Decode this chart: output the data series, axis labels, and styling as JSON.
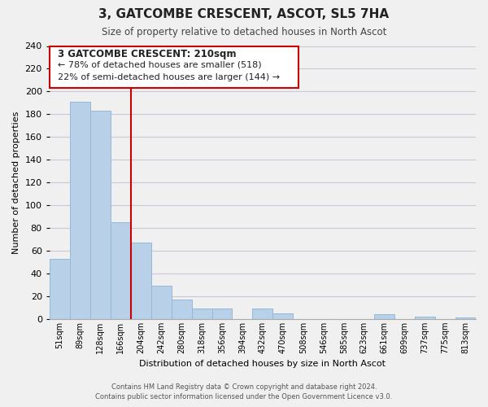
{
  "title": "3, GATCOMBE CRESCENT, ASCOT, SL5 7HA",
  "subtitle": "Size of property relative to detached houses in North Ascot",
  "xlabel": "Distribution of detached houses by size in North Ascot",
  "ylabel": "Number of detached properties",
  "categories": [
    "51sqm",
    "89sqm",
    "128sqm",
    "166sqm",
    "204sqm",
    "242sqm",
    "280sqm",
    "318sqm",
    "356sqm",
    "394sqm",
    "432sqm",
    "470sqm",
    "508sqm",
    "546sqm",
    "585sqm",
    "623sqm",
    "661sqm",
    "699sqm",
    "737sqm",
    "775sqm",
    "813sqm"
  ],
  "values": [
    53,
    191,
    183,
    85,
    67,
    29,
    17,
    9,
    9,
    0,
    9,
    5,
    0,
    0,
    0,
    0,
    4,
    0,
    2,
    0,
    1
  ],
  "bar_color": "#b8d0e8",
  "bar_edge_color": "#94b8d8",
  "vline_x_index": 3.5,
  "vline_color": "#cc0000",
  "annotation_title": "3 GATCOMBE CRESCENT: 210sqm",
  "annotation_line1": "← 78% of detached houses are smaller (518)",
  "annotation_line2": "22% of semi-detached houses are larger (144) →",
  "annotation_box_color": "#ffffff",
  "annotation_box_edge_color": "#cc0000",
  "ylim": [
    0,
    240
  ],
  "yticks": [
    0,
    20,
    40,
    60,
    80,
    100,
    120,
    140,
    160,
    180,
    200,
    220,
    240
  ],
  "footer_line1": "Contains HM Land Registry data © Crown copyright and database right 2024.",
  "footer_line2": "Contains public sector information licensed under the Open Government Licence v3.0.",
  "bg_color": "#f0f0f0",
  "plot_bg_color": "#f0f0f0",
  "grid_color": "#c8c8d8"
}
